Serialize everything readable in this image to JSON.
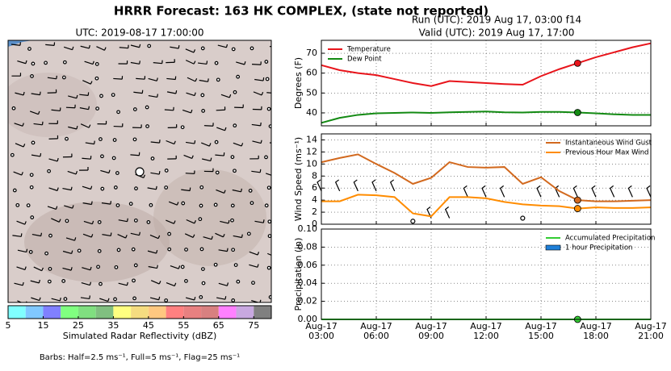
{
  "title": "HRRR Forecast: 163 HK COMPLEX, (state not reported)",
  "run": "Run (UTC): 2019 Aug 17, 03:00 f14",
  "valid": "Valid (UTC): 2019 Aug 17, 17:00",
  "map": {
    "title": "UTC: 2019-08-17 17:00:00",
    "colorbar": {
      "label": "Simulated Radar Reflectivity (dBZ)",
      "clim": [
        5,
        80
      ],
      "ticks": [
        5,
        15,
        25,
        35,
        45,
        55,
        65,
        75
      ],
      "colors": [
        "#80ffff",
        "#80c8ff",
        "#8080ff",
        "#80ff80",
        "#80df80",
        "#80bf80",
        "#ffff80",
        "#f5dc80",
        "#ffc880",
        "#ff8080",
        "#e88080",
        "#d88080",
        "#ff80ff",
        "#c8a8e0",
        "#808080"
      ]
    },
    "footnote": "Barbs: Half=2.5 ms⁻¹, Full=5 ms⁻¹, Flag=25 ms⁻¹"
  },
  "chart_data": [
    {
      "type": "line",
      "ylabel": "Degrees (F)",
      "x": [
        3,
        4,
        5,
        6,
        7,
        8,
        9,
        10,
        11,
        12,
        13,
        14,
        15,
        16,
        17,
        18,
        19,
        20,
        21
      ],
      "xlim": [
        3,
        21
      ],
      "xticks": [
        3,
        6,
        9,
        12,
        15,
        18,
        21
      ],
      "ylim": [
        33.5,
        76.5
      ],
      "yticks": [
        40,
        50,
        60,
        70
      ],
      "grid": true,
      "legend": "upper left",
      "highlight_x": 17,
      "series": [
        {
          "name": "Temperature",
          "color": "#e8141b",
          "values": [
            64,
            61.5,
            60,
            59,
            57,
            55,
            53.5,
            56,
            55.5,
            55,
            54.5,
            54.2,
            58.5,
            62,
            65,
            68,
            70.5,
            73,
            75
          ]
        },
        {
          "name": "Dew Point",
          "color": "#138a13",
          "values": [
            35,
            37.5,
            39,
            39.8,
            40,
            40.2,
            40,
            40.3,
            40.5,
            40.7,
            40.3,
            40.2,
            40.5,
            40.5,
            40.2,
            39.8,
            39.3,
            39,
            39
          ]
        }
      ]
    },
    {
      "type": "line",
      "ylabel": "Wind Speed (ms⁻¹)",
      "x": [
        3,
        4,
        5,
        6,
        7,
        8,
        9,
        10,
        11,
        12,
        13,
        14,
        15,
        16,
        17,
        18,
        19,
        20,
        21
      ],
      "xlim": [
        3,
        21
      ],
      "xticks": [
        3,
        6,
        9,
        12,
        15,
        18,
        21
      ],
      "ylim": [
        0,
        15
      ],
      "yticks": [
        0,
        2,
        4,
        6,
        8,
        10,
        12,
        14
      ],
      "grid": true,
      "legend": "upper right",
      "highlight_x": 17,
      "series": [
        {
          "name": "Instantaneous Wind Gust",
          "color": "#d2691e",
          "values": [
            10.3,
            11,
            11.6,
            10,
            8.5,
            6.7,
            7.7,
            10.3,
            9.5,
            9.4,
            9.5,
            6.7,
            7.8,
            5.5,
            4,
            3.8,
            3.8,
            3.9,
            4
          ]
        },
        {
          "name": "Previous Hour Max Wind",
          "color": "#ff8c00",
          "values": [
            3.8,
            3.8,
            4.9,
            4.8,
            4.5,
            1.8,
            1.3,
            4.5,
            4.5,
            4.3,
            3.7,
            3.3,
            3.1,
            3,
            2.6,
            2.8,
            2.7,
            2.7,
            2.8
          ]
        }
      ]
    },
    {
      "type": "line",
      "ylabel": "Precipitation (in)",
      "x": [
        3,
        4,
        5,
        6,
        7,
        8,
        9,
        10,
        11,
        12,
        13,
        14,
        15,
        16,
        17,
        18,
        19,
        20,
        21
      ],
      "xlim": [
        3,
        21
      ],
      "xticks": [
        {
          "value": 3,
          "label": "Aug-17\n03:00"
        },
        {
          "value": 6,
          "label": "Aug-17\n06:00"
        },
        {
          "value": 9,
          "label": "Aug-17\n09:00"
        },
        {
          "value": 12,
          "label": "Aug-17\n12:00"
        },
        {
          "value": 15,
          "label": "Aug-17\n15:00"
        },
        {
          "value": 18,
          "label": "Aug-17\n18:00"
        },
        {
          "value": 21,
          "label": "Aug-17\n21:00"
        }
      ],
      "ylim": [
        0,
        0.1
      ],
      "yticks": [
        {
          "value": 0,
          "label": "0.00"
        },
        0.02,
        0.04,
        0.06,
        0.08,
        {
          "value": 0.1,
          "label": "0.10"
        }
      ],
      "grid": true,
      "legend": "upper right",
      "highlight_x": 17,
      "series": [
        {
          "name": "Accumulated Precipitation",
          "color": "#33cc33",
          "values": [
            0,
            0,
            0,
            0,
            0,
            0,
            0,
            0,
            0,
            0,
            0,
            0,
            0,
            0,
            0,
            0,
            0,
            0,
            0
          ]
        },
        {
          "name": "1 hour Precipitation",
          "color": "#1e7fd8",
          "bar": true,
          "values": [
            0,
            0,
            0,
            0,
            0,
            0,
            0,
            0,
            0,
            0,
            0,
            0,
            0,
            0,
            0,
            0,
            0,
            0,
            0
          ]
        }
      ]
    }
  ]
}
